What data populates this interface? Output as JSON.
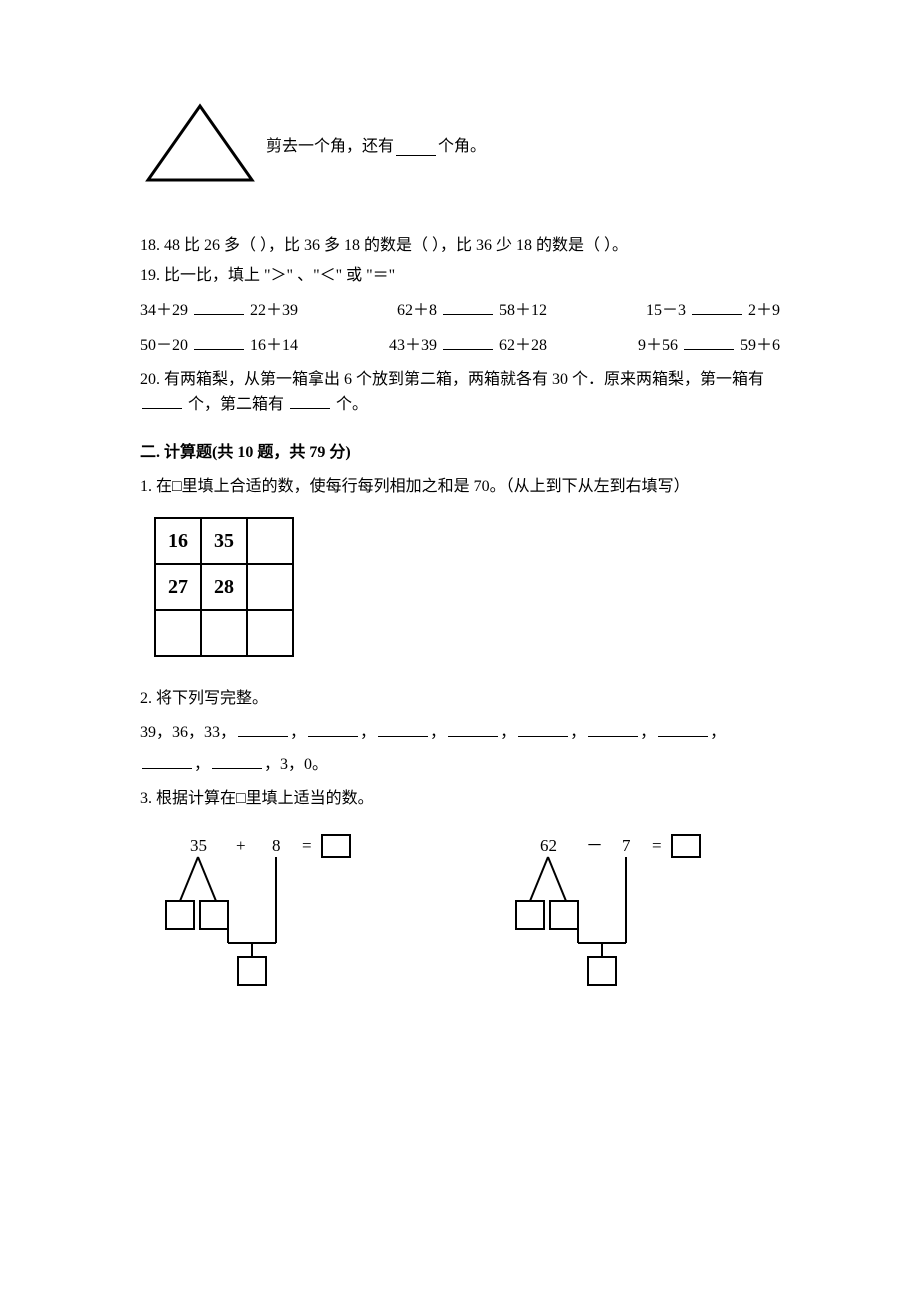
{
  "q17": {
    "triangle_svg": {
      "w": 120,
      "h": 86,
      "stroke": "#000000",
      "stroke_width": 3
    },
    "text_before": "剪去一个角，还有",
    "text_after": "个角。"
  },
  "q18": {
    "num": "18.",
    "t1": "48 比 26 多（     ），比 36 多 18 的数是（     ），比 36 少 18 的数是（     ）。"
  },
  "q19": {
    "num": "19.",
    "intro": "比一比，填上 \"＞\" 、\"＜\" 或 \"＝\"",
    "rows": [
      [
        {
          "left": "34＋29",
          "right": "22＋39"
        },
        {
          "left": "62＋8",
          "right": "58＋12"
        },
        {
          "left": "15－3",
          "right": "2＋9"
        }
      ],
      [
        {
          "left": "50－20",
          "right": "16＋14"
        },
        {
          "left": "43＋39",
          "right": "62＋28"
        },
        {
          "left": "9＋56",
          "right": "59＋6"
        }
      ]
    ]
  },
  "q20": {
    "num": "20.",
    "t_before": "有两箱梨，从第一箱拿出 6 个放到第二箱，两箱就各有 30 个．原来两箱梨，第一箱有",
    "t_mid": "个，第二箱有",
    "t_after": "个。"
  },
  "section2": {
    "heading_a": "二. 计算题(共 ",
    "heading_b": "10 ",
    "heading_c": "题，共 ",
    "heading_d": "79 ",
    "heading_e": "分)"
  },
  "s2q1": {
    "num": "1.",
    "text": "在□里填上合适的数，使每行每列相加之和是 70。（从上到下从左到右填写）",
    "grid": [
      [
        "16",
        "35",
        ""
      ],
      [
        "27",
        "28",
        ""
      ],
      [
        "",
        "",
        ""
      ]
    ]
  },
  "s2q2": {
    "num": "2.",
    "title": "将下列写完整。",
    "seq_prefix": "39，36，33，",
    "seq_suffix": "，3，0。",
    "blanks_count": 9
  },
  "s2q3": {
    "num": "3.",
    "title": "根据计算在□里填上适当的数。",
    "left": {
      "a": "35",
      "op": "+",
      "b": "8",
      "eq": "="
    },
    "right": {
      "a": "62",
      "op": "－",
      "b": "7",
      "eq": "="
    }
  },
  "colors": {
    "text": "#000000",
    "bg": "#ffffff",
    "stroke": "#000000"
  }
}
